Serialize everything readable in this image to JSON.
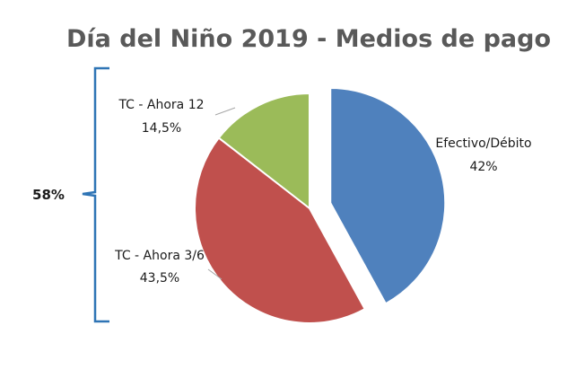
{
  "chart_data": {
    "type": "pie",
    "title": "Día del Niño 2019 - Medios de pago",
    "slices": [
      {
        "label": "Efectivo/Débito",
        "value": 42,
        "display": "42%",
        "color": "#4f81bd",
        "exploded": true
      },
      {
        "label": "TC - Ahora 3/6",
        "value": 43.5,
        "display": "43,5%",
        "color": "#c0504d",
        "exploded": false
      },
      {
        "label": "TC - Ahora 12",
        "value": 14.5,
        "display": "14,5%",
        "color": "#9bbb59",
        "exploded": false
      }
    ],
    "bracket": {
      "label": "58%",
      "color": "#2e74b5",
      "groups": [
        "TC - Ahora 12",
        "TC - Ahora 3/6"
      ]
    },
    "legend": "none",
    "data_labels": "outside"
  }
}
